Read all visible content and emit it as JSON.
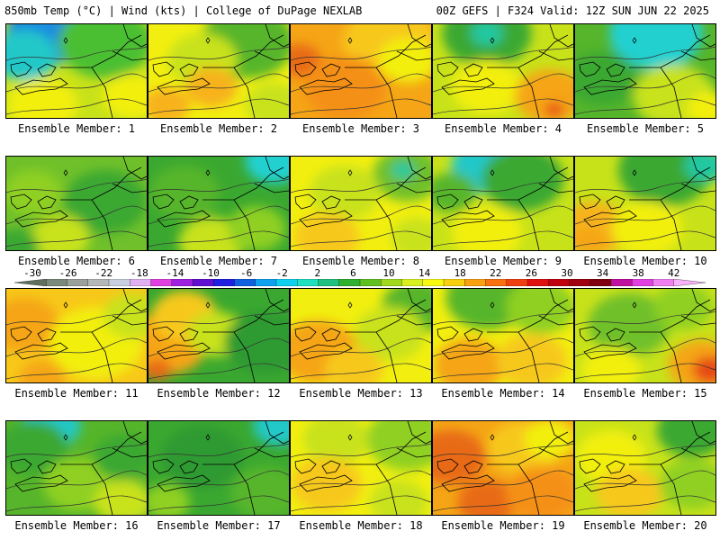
{
  "header": {
    "left": "850mb Temp (°C) | Wind (kts) | College of DuPage NEXLAB",
    "right": "00Z GEFS | F324 Valid: 12Z SUN JUN 22 2025"
  },
  "label_prefix": "Ensemble Member: ",
  "members": [
    {
      "id": 1,
      "label": "Ensemble Member: 1",
      "base": "#c8e21a",
      "patches": [
        {
          "c": "#0a2fd8",
          "x": 55,
          "y": 0,
          "r": 40
        },
        {
          "c": "#1a8ce0",
          "x": 40,
          "y": 15,
          "r": 32
        },
        {
          "c": "#22c8c8",
          "x": 20,
          "y": 35,
          "r": 28
        },
        {
          "c": "#4cbf30",
          "x": 110,
          "y": 20,
          "r": 40
        },
        {
          "c": "#f2ef10",
          "x": 40,
          "y": 90,
          "r": 30
        },
        {
          "c": "#f2ef10",
          "x": 140,
          "y": 80,
          "r": 25
        }
      ]
    },
    {
      "id": 2,
      "label": "Ensemble Member: 2",
      "base": "#f2ef10",
      "patches": [
        {
          "c": "#56b52a",
          "x": 110,
          "y": 20,
          "r": 40
        },
        {
          "c": "#c8e21a",
          "x": 60,
          "y": 40,
          "r": 30
        },
        {
          "c": "#f7b21a",
          "x": 70,
          "y": 70,
          "r": 22
        },
        {
          "c": "#f7b21a",
          "x": 20,
          "y": 90,
          "r": 20
        },
        {
          "c": "#c8e21a",
          "x": 140,
          "y": 90,
          "r": 25
        }
      ]
    },
    {
      "id": 3,
      "label": "Ensemble Member: 3",
      "base": "#f5a516",
      "patches": [
        {
          "c": "#f7c81a",
          "x": 110,
          "y": 20,
          "r": 40
        },
        {
          "c": "#e86a14",
          "x": 10,
          "y": 40,
          "r": 18
        },
        {
          "c": "#f59015",
          "x": 60,
          "y": 70,
          "r": 35
        },
        {
          "c": "#f2ef10",
          "x": 130,
          "y": 40,
          "r": 25
        }
      ]
    },
    {
      "id": 4,
      "label": "Ensemble Member: 4",
      "base": "#c8e21a",
      "patches": [
        {
          "c": "#3aa830",
          "x": 60,
          "y": 10,
          "r": 38
        },
        {
          "c": "#22c8a0",
          "x": 60,
          "y": 10,
          "r": 14
        },
        {
          "c": "#f2ef10",
          "x": 60,
          "y": 70,
          "r": 30
        },
        {
          "c": "#f5a516",
          "x": 130,
          "y": 80,
          "r": 30
        },
        {
          "c": "#e84a14",
          "x": 135,
          "y": 95,
          "r": 8
        }
      ]
    },
    {
      "id": 5,
      "label": "Ensemble Member: 5",
      "base": "#56b52a",
      "patches": [
        {
          "c": "#22d0d0",
          "x": 90,
          "y": 10,
          "r": 40
        },
        {
          "c": "#3aa830",
          "x": 30,
          "y": 60,
          "r": 30
        },
        {
          "c": "#c8e21a",
          "x": 110,
          "y": 80,
          "r": 35
        },
        {
          "c": "#f2ef10",
          "x": 150,
          "y": 95,
          "r": 20
        }
      ]
    },
    {
      "id": 6,
      "label": "Ensemble Member: 6",
      "base": "#6fc02a",
      "patches": [
        {
          "c": "#3aa830",
          "x": 110,
          "y": 50,
          "r": 35
        },
        {
          "c": "#8fd020",
          "x": 30,
          "y": 40,
          "r": 25
        },
        {
          "c": "#c8e21a",
          "x": 60,
          "y": 90,
          "r": 25
        },
        {
          "c": "#3aa830",
          "x": 10,
          "y": 100,
          "r": 20
        }
      ]
    },
    {
      "id": 7,
      "label": "Ensemble Member: 7",
      "base": "#3aa830",
      "patches": [
        {
          "c": "#22d0d0",
          "x": 140,
          "y": 5,
          "r": 25
        },
        {
          "c": "#56b52a",
          "x": 40,
          "y": 40,
          "r": 30
        },
        {
          "c": "#c8e21a",
          "x": 70,
          "y": 95,
          "r": 28
        },
        {
          "c": "#8fd020",
          "x": 120,
          "y": 80,
          "r": 25
        }
      ]
    },
    {
      "id": 8,
      "label": "Ensemble Member: 8",
      "base": "#f2ef10",
      "patches": [
        {
          "c": "#6fc02a",
          "x": 130,
          "y": 20,
          "r": 30
        },
        {
          "c": "#22c8a0",
          "x": 125,
          "y": 15,
          "r": 10
        },
        {
          "c": "#c8e21a",
          "x": 60,
          "y": 40,
          "r": 30
        },
        {
          "c": "#f7c81a",
          "x": 40,
          "y": 90,
          "r": 28
        },
        {
          "c": "#c8e21a",
          "x": 140,
          "y": 90,
          "r": 22
        }
      ]
    },
    {
      "id": 9,
      "label": "Ensemble Member: 9",
      "base": "#c8e21a",
      "patches": [
        {
          "c": "#22c8c8",
          "x": 60,
          "y": 10,
          "r": 30
        },
        {
          "c": "#3aa830",
          "x": 100,
          "y": 25,
          "r": 35
        },
        {
          "c": "#f2ef10",
          "x": 60,
          "y": 85,
          "r": 30
        },
        {
          "c": "#56b52a",
          "x": 20,
          "y": 40,
          "r": 22
        }
      ]
    },
    {
      "id": 10,
      "label": "Ensemble Member: 10",
      "base": "#c8e21a",
      "patches": [
        {
          "c": "#3aa830",
          "x": 100,
          "y": 15,
          "r": 40
        },
        {
          "c": "#22c8a0",
          "x": 145,
          "y": 10,
          "r": 18
        },
        {
          "c": "#f7b21a",
          "x": 20,
          "y": 80,
          "r": 30
        },
        {
          "c": "#f5a516",
          "x": 15,
          "y": 95,
          "r": 15
        },
        {
          "c": "#f2ef10",
          "x": 80,
          "y": 80,
          "r": 30
        }
      ]
    },
    {
      "id": 11,
      "label": "Ensemble Member: 11",
      "base": "#f7c81a",
      "patches": [
        {
          "c": "#f5a516",
          "x": 20,
          "y": 40,
          "r": 30
        },
        {
          "c": "#f2ef10",
          "x": 100,
          "y": 60,
          "r": 40
        },
        {
          "c": "#c8e21a",
          "x": 140,
          "y": 30,
          "r": 25
        },
        {
          "c": "#f5a516",
          "x": 40,
          "y": 100,
          "r": 20
        }
      ]
    },
    {
      "id": 12,
      "label": "Ensemble Member: 12",
      "base": "#3aa830",
      "patches": [
        {
          "c": "#f5a516",
          "x": 20,
          "y": 60,
          "r": 35
        },
        {
          "c": "#f7c81a",
          "x": 40,
          "y": 30,
          "r": 28
        },
        {
          "c": "#c8e21a",
          "x": 75,
          "y": 50,
          "r": 25
        },
        {
          "c": "#2f9a30",
          "x": 130,
          "y": 60,
          "r": 35
        },
        {
          "c": "#e86a14",
          "x": 10,
          "y": 90,
          "r": 12
        }
      ]
    },
    {
      "id": 13,
      "label": "Ensemble Member: 13",
      "base": "#f2ef10",
      "patches": [
        {
          "c": "#56b52a",
          "x": 140,
          "y": 20,
          "r": 30
        },
        {
          "c": "#c8e21a",
          "x": 110,
          "y": 50,
          "r": 30
        },
        {
          "c": "#f5a516",
          "x": 30,
          "y": 70,
          "r": 35
        },
        {
          "c": "#f7c81a",
          "x": 70,
          "y": 90,
          "r": 25
        }
      ]
    },
    {
      "id": 14,
      "label": "Ensemble Member: 14",
      "base": "#f2ef10",
      "patches": [
        {
          "c": "#56b52a",
          "x": 60,
          "y": 10,
          "r": 35
        },
        {
          "c": "#8fd020",
          "x": 120,
          "y": 20,
          "r": 30
        },
        {
          "c": "#f5a516",
          "x": 40,
          "y": 85,
          "r": 30
        },
        {
          "c": "#f7c81a",
          "x": 110,
          "y": 80,
          "r": 30
        }
      ]
    },
    {
      "id": 15,
      "label": "Ensemble Member: 15",
      "base": "#c8e21a",
      "patches": [
        {
          "c": "#6fc02a",
          "x": 60,
          "y": 40,
          "r": 35
        },
        {
          "c": "#f2ef10",
          "x": 40,
          "y": 90,
          "r": 25
        },
        {
          "c": "#f5a516",
          "x": 140,
          "y": 85,
          "r": 28
        },
        {
          "c": "#e84a14",
          "x": 150,
          "y": 90,
          "r": 15
        },
        {
          "c": "#8fd020",
          "x": 120,
          "y": 20,
          "r": 25
        }
      ]
    },
    {
      "id": 16,
      "label": "Ensemble Member: 16",
      "base": "#56b52a",
      "patches": [
        {
          "c": "#22c8c8",
          "x": 50,
          "y": 5,
          "r": 25
        },
        {
          "c": "#3aa830",
          "x": 30,
          "y": 30,
          "r": 30
        },
        {
          "c": "#8fd020",
          "x": 80,
          "y": 70,
          "r": 30
        },
        {
          "c": "#c8e21a",
          "x": 130,
          "y": 90,
          "r": 25
        },
        {
          "c": "#3aa830",
          "x": 130,
          "y": 40,
          "r": 25
        }
      ]
    },
    {
      "id": 17,
      "label": "Ensemble Member: 17",
      "base": "#3aa830",
      "patches": [
        {
          "c": "#22c8c8",
          "x": 145,
          "y": 5,
          "r": 22
        },
        {
          "c": "#2f9a30",
          "x": 60,
          "y": 40,
          "r": 35
        },
        {
          "c": "#56b52a",
          "x": 130,
          "y": 80,
          "r": 30
        },
        {
          "c": "#8fd020",
          "x": 20,
          "y": 90,
          "r": 20
        }
      ]
    },
    {
      "id": 18,
      "label": "Ensemble Member: 18",
      "base": "#f2ef10",
      "patches": [
        {
          "c": "#8fd020",
          "x": 130,
          "y": 20,
          "r": 35
        },
        {
          "c": "#c8e21a",
          "x": 50,
          "y": 20,
          "r": 28
        },
        {
          "c": "#f7c81a",
          "x": 40,
          "y": 70,
          "r": 30
        },
        {
          "c": "#c8e21a",
          "x": 120,
          "y": 90,
          "r": 25
        }
      ]
    },
    {
      "id": 19,
      "label": "Ensemble Member: 19",
      "base": "#f5a516",
      "patches": [
        {
          "c": "#e86a14",
          "x": 20,
          "y": 40,
          "r": 30
        },
        {
          "c": "#f7c81a",
          "x": 100,
          "y": 30,
          "r": 30
        },
        {
          "c": "#f2ef10",
          "x": 130,
          "y": 20,
          "r": 22
        },
        {
          "c": "#e86a14",
          "x": 60,
          "y": 90,
          "r": 25
        },
        {
          "c": "#f59015",
          "x": 120,
          "y": 80,
          "r": 30
        }
      ]
    },
    {
      "id": 20,
      "label": "Ensemble Member: 20",
      "base": "#c8e21a",
      "patches": [
        {
          "c": "#3aa830",
          "x": 130,
          "y": 10,
          "r": 30
        },
        {
          "c": "#f2ef10",
          "x": 40,
          "y": 40,
          "r": 30
        },
        {
          "c": "#f7c81a",
          "x": 60,
          "y": 80,
          "r": 28
        },
        {
          "c": "#8fd020",
          "x": 130,
          "y": 70,
          "r": 28
        }
      ]
    }
  ],
  "colorbar": {
    "labels": [
      -30,
      -26,
      -22,
      -18,
      -14,
      -10,
      -6,
      -2,
      2,
      6,
      10,
      14,
      18,
      22,
      26,
      30,
      34,
      38,
      42
    ],
    "colors": [
      "#5f6f5f",
      "#7a8a7a",
      "#9aa09a",
      "#b4b8b8",
      "#c8d0e0",
      "#e0b0f0",
      "#e040e0",
      "#a020e0",
      "#6010d0",
      "#2020e0",
      "#1060e0",
      "#10a0f0",
      "#10d0f0",
      "#20e0c0",
      "#20c080",
      "#30b030",
      "#60c020",
      "#a0d820",
      "#d8f020",
      "#f8f810",
      "#f8d010",
      "#f8a010",
      "#f87010",
      "#f04010",
      "#e01010",
      "#c00010",
      "#a00010",
      "#800010",
      "#c010a0",
      "#e040e0",
      "#f080f0",
      "#f8b0f8"
    ]
  }
}
